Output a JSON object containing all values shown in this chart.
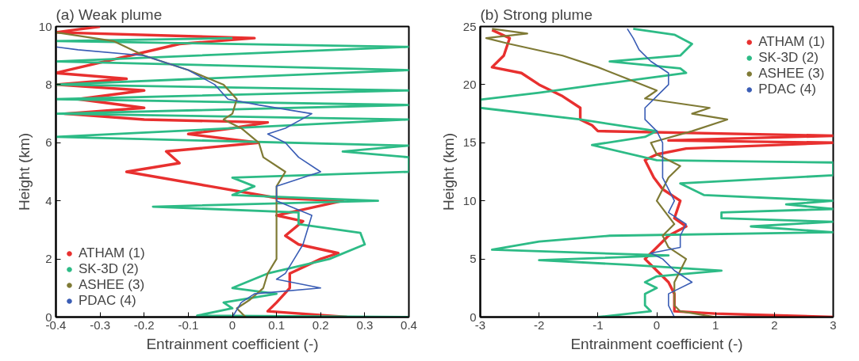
{
  "chart_data": [
    {
      "type": "line",
      "title": "(a) Weak plume",
      "xlabel": "Entrainment coefficient (-)",
      "ylabel": "Height (km)",
      "xlim": [
        -0.4,
        0.4
      ],
      "ylim": [
        0,
        10
      ],
      "xticks": [
        -0.4,
        -0.3,
        -0.2,
        -0.1,
        0,
        0.1,
        0.2,
        0.3,
        0.4
      ],
      "yticks": [
        0,
        2,
        4,
        6,
        8,
        10
      ],
      "legend": "bottom left",
      "grid": false,
      "marker": "none",
      "line_style": "solid",
      "series": [
        {
          "name": "ATHAM (1)",
          "color": "#e8302f",
          "x": [
            0.26,
            0.08,
            0.1,
            0.13,
            0.13,
            0.2,
            0.24,
            0.15,
            0.12,
            0.16,
            0.1,
            0.25,
            0.1,
            -0.05,
            -0.24,
            -0.12,
            -0.15,
            0.06,
            -0.1,
            0.0,
            0.08,
            -0.2,
            -0.38,
            -0.2,
            -0.35,
            -0.2,
            -0.4,
            -0.24,
            -0.4,
            -0.12,
            0.05,
            -0.4,
            -0.3
          ],
          "values": [
            0,
            0.2,
            0.5,
            1.0,
            1.5,
            2.0,
            2.2,
            2.5,
            2.8,
            3.3,
            3.5,
            4.0,
            4.1,
            4.5,
            5.0,
            5.3,
            5.7,
            6.0,
            6.3,
            6.5,
            6.7,
            6.8,
            7.0,
            7.2,
            7.5,
            7.8,
            8.0,
            8.2,
            8.4,
            9.4,
            9.6,
            9.8,
            10
          ]
        },
        {
          "name": "SK-3D (2)",
          "color": "#2dbb86",
          "x": [
            0.4,
            -0.08,
            0.0,
            -0.02,
            0.1,
            0.0,
            0.08,
            0.22,
            0.3,
            0.29,
            0.15,
            0.15,
            -0.18,
            0.33,
            0.0,
            0.05,
            0.0,
            0.4,
            0.4,
            0.25,
            0.4,
            -0.4,
            0.0,
            0.4,
            -0.4,
            0.4,
            -0.4,
            0.4,
            -0.4,
            0.4,
            -0.4,
            0.4,
            -0.4,
            0.0
          ],
          "values": [
            0,
            0.05,
            0.3,
            0.5,
            0.8,
            1.0,
            1.5,
            2.0,
            2.5,
            2.9,
            3.2,
            3.6,
            3.8,
            4.0,
            4.2,
            4.5,
            4.8,
            5.0,
            5.5,
            5.7,
            5.9,
            6.2,
            6.5,
            6.8,
            7.0,
            7.3,
            7.5,
            7.8,
            8.0,
            8.5,
            8.8,
            9.3,
            9.5,
            9.6
          ]
        },
        {
          "name": "ASHEE (3)",
          "color": "#7f7a35",
          "x": [
            0.03,
            0.01,
            0.04,
            0.07,
            0.08,
            0.1,
            0.1,
            0.1,
            0.1,
            0.1,
            0.1,
            0.12,
            0.07,
            0.06,
            0.02,
            -0.02,
            0.0,
            0.01,
            -0.02,
            -0.1,
            -0.2,
            -0.27,
            -0.4
          ],
          "values": [
            0,
            0.3,
            0.6,
            1.0,
            1.5,
            2.0,
            2.5,
            3.0,
            3.5,
            4.0,
            4.5,
            5.0,
            5.5,
            6.0,
            6.5,
            6.8,
            7.0,
            7.5,
            8.0,
            8.5,
            9.0,
            9.5,
            9.8
          ]
        },
        {
          "name": "PDAC (4)",
          "color": "#3a5db5",
          "x": [
            0.0,
            0.02,
            0.05,
            0.2,
            0.1,
            0.12,
            0.14,
            0.16,
            0.17,
            0.18,
            0.1,
            0.1,
            0.2,
            0.15,
            0.12,
            0.08,
            0.12,
            0.18,
            0.06,
            -0.01,
            -0.04,
            -0.1,
            -0.2,
            -0.35,
            -0.4
          ],
          "values": [
            0,
            0.5,
            0.8,
            1.0,
            1.3,
            1.5,
            2.0,
            2.5,
            3.0,
            3.5,
            4.0,
            4.5,
            5.0,
            5.5,
            6.0,
            6.3,
            6.5,
            7.0,
            7.3,
            7.5,
            8.0,
            8.5,
            9.0,
            9.2,
            9.3
          ]
        }
      ]
    },
    {
      "type": "line",
      "title": "(b) Strong plume",
      "xlabel": "Entrainment coefficient (-)",
      "ylabel": "Height (km)",
      "xlim": [
        -3,
        3
      ],
      "ylim": [
        0,
        25
      ],
      "xticks": [
        -3,
        -2,
        -1,
        0,
        1,
        2,
        3
      ],
      "yticks": [
        0,
        5,
        10,
        15,
        20,
        25
      ],
      "legend": "top right",
      "grid": false,
      "marker": "none",
      "line_style": "solid",
      "series": [
        {
          "name": "ATHAM (1)",
          "color": "#e8302f",
          "x": [
            3,
            1.0,
            0.3,
            0.3,
            0.2,
            0.0,
            -0.2,
            0.0,
            0.2,
            0.5,
            0.3,
            0.4,
            0.1,
            -0.05,
            -0.2,
            0.0,
            0.5,
            3,
            0.2,
            3,
            -1.0,
            -1.1,
            -1.3,
            -1.3,
            -1.6,
            -2.0,
            -2.3,
            -2.8,
            -2.6,
            -2.5,
            -2.8
          ],
          "values": [
            0,
            0.3,
            0.5,
            2,
            3,
            4,
            5,
            6,
            7,
            7.8,
            8.5,
            10,
            11,
            12,
            13.5,
            14,
            14.5,
            15,
            15.2,
            15.6,
            16,
            16.5,
            17,
            18,
            19,
            20,
            21,
            21.5,
            22.5,
            24,
            24.7
          ]
        },
        {
          "name": "SK-3D (2)",
          "color": "#2dbb86",
          "x": [
            -1.0,
            -0.1,
            -0.2,
            -0.2,
            0.0,
            -0.2,
            0.0,
            1.1,
            -0.5,
            -2.0,
            0.2,
            -2.8,
            -2.0,
            -0.8,
            3,
            1.6,
            3,
            1.1,
            1.1,
            3,
            2.2,
            3,
            0.8,
            0.4,
            3,
            3,
            0.0,
            -1.1,
            -0.2,
            0.0,
            -1.3,
            -3,
            -3,
            -2,
            -1.0,
            0.5,
            0.4,
            -0.8,
            0.4,
            0.6,
            0.3,
            -0.4
          ],
          "values": [
            0,
            0.5,
            1,
            2,
            2.5,
            3,
            3.5,
            4,
            4.5,
            4.9,
            5.3,
            5.8,
            6.5,
            7,
            7.3,
            7.8,
            8.2,
            8.5,
            9,
            9.3,
            9.7,
            10,
            10.5,
            11.5,
            12.2,
            13.3,
            13.5,
            14.8,
            15.5,
            16,
            17,
            18,
            18.7,
            19.3,
            20,
            21,
            21.4,
            22,
            22.5,
            23.5,
            24.3,
            24.8
          ]
        },
        {
          "name": "ASHEE (3)",
          "color": "#7f7a35",
          "x": [
            1.0,
            0.4,
            0.3,
            0.3,
            0.3,
            0.4,
            0.5,
            0.2,
            0.1,
            0.3,
            0.0,
            0.1,
            0.2,
            0.4,
            0.0,
            -0.1,
            0.6,
            1.2,
            0.6,
            0.9,
            -0.2,
            0.0,
            -0.5,
            -1.0,
            -1.6,
            -2.5,
            -2.9,
            -2.2,
            -2.8
          ],
          "values": [
            0,
            0.5,
            1,
            2,
            3,
            4,
            5,
            6,
            7,
            8,
            10,
            11,
            12,
            13,
            14,
            15,
            16,
            17,
            17.5,
            18,
            18.8,
            19.5,
            20.5,
            21.5,
            22.5,
            23.5,
            24,
            24.4,
            24.8
          ]
        },
        {
          "name": "PDAC (4)",
          "color": "#3a5db5",
          "x": [
            0.3,
            0.2,
            0.2,
            0.6,
            0.3,
            0.1,
            -0.1,
            0.4,
            0.4,
            0.5,
            0.2,
            0.3,
            0.1,
            0.1,
            0.1,
            0.0,
            -0.2,
            -0.2,
            0.0,
            0.2,
            0.2,
            -0.1,
            -0.3,
            -0.4,
            -0.5
          ],
          "values": [
            0,
            1,
            2,
            3,
            4,
            5,
            5.5,
            6,
            7,
            8,
            9,
            10,
            12,
            14,
            15,
            16,
            17,
            18,
            19,
            20,
            21,
            22,
            23,
            24,
            24.8
          ]
        }
      ]
    }
  ]
}
